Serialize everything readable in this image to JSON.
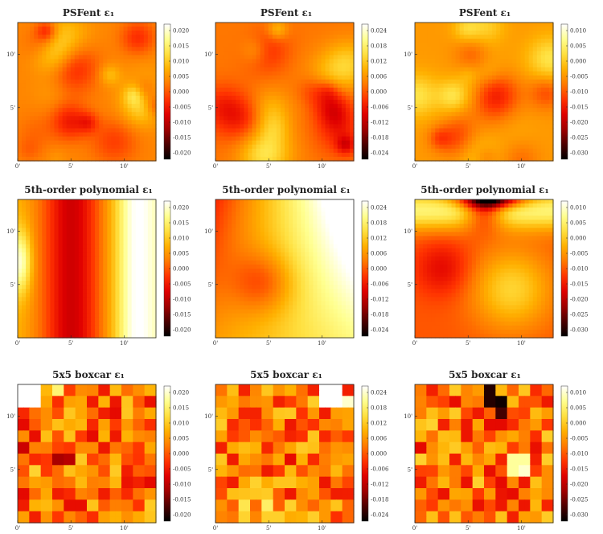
{
  "chart_data": [
    {
      "type": "heatmap",
      "title": "PSFent ε₁",
      "method": "psfent",
      "x_ticks": [
        "0'",
        "5'",
        "10'"
      ],
      "y_ticks": [
        "10'",
        "5'"
      ],
      "colorbar_ticks": [
        "0.020",
        "0.015",
        "0.010",
        "0.005",
        "0.000",
        "-0.005",
        "-0.010",
        "-0.015",
        "-0.020"
      ],
      "colormap": "hot"
    },
    {
      "type": "heatmap",
      "title": "PSFent ε₁",
      "method": "psfent",
      "x_ticks": [
        "0'",
        "5'",
        "10'"
      ],
      "y_ticks": [
        "10'",
        "5'"
      ],
      "colorbar_ticks": [
        "0.024",
        "0.018",
        "0.012",
        "0.006",
        "0.000",
        "-0.006",
        "-0.012",
        "-0.018",
        "-0.024"
      ],
      "colormap": "hot"
    },
    {
      "type": "heatmap",
      "title": "PSFent ε₁",
      "method": "psfent",
      "x_ticks": [
        "0'",
        "5'",
        "10'"
      ],
      "y_ticks": [
        "10'",
        "5'"
      ],
      "colorbar_ticks": [
        "0.010",
        "0.005",
        "0.000",
        "-0.005",
        "-0.010",
        "-0.015",
        "-0.020",
        "-0.025",
        "-0.030"
      ],
      "colormap": "hot"
    },
    {
      "type": "heatmap",
      "title": "5th-order polynomial ε₁",
      "method": "poly",
      "x_ticks": [
        "0'",
        "5'",
        "10'"
      ],
      "y_ticks": [
        "10'",
        "5'"
      ],
      "colorbar_ticks": [
        "0.020",
        "0.015",
        "0.010",
        "0.005",
        "0.000",
        "-0.005",
        "-0.010",
        "-0.015",
        "-0.020"
      ],
      "colormap": "hot"
    },
    {
      "type": "heatmap",
      "title": "5th-order polynomial ε₁",
      "method": "poly",
      "x_ticks": [
        "0'",
        "5'",
        "10'"
      ],
      "y_ticks": [
        "10'",
        "5'"
      ],
      "colorbar_ticks": [
        "0.024",
        "0.018",
        "0.012",
        "0.006",
        "0.000",
        "-0.006",
        "-0.012",
        "-0.018",
        "-0.024"
      ],
      "colormap": "hot"
    },
    {
      "type": "heatmap",
      "title": "5th-order polynomial ε₁",
      "method": "poly",
      "x_ticks": [
        "0'",
        "5'",
        "10'"
      ],
      "y_ticks": [
        "10'",
        "5'"
      ],
      "colorbar_ticks": [
        "0.010",
        "0.005",
        "0.000",
        "-0.005",
        "-0.010",
        "-0.015",
        "-0.020",
        "-0.025",
        "-0.030"
      ],
      "colormap": "hot"
    },
    {
      "type": "heatmap",
      "title": "5x5 boxcar ε₁",
      "method": "boxcar",
      "x_ticks": [
        "0'",
        "5'",
        "10'"
      ],
      "y_ticks": [
        "10'",
        "5'"
      ],
      "colorbar_ticks": [
        "0.020",
        "0.015",
        "0.010",
        "0.005",
        "0.000",
        "-0.005",
        "-0.010",
        "-0.015",
        "-0.020"
      ],
      "colormap": "hot"
    },
    {
      "type": "heatmap",
      "title": "5x5 boxcar ε₁",
      "method": "boxcar",
      "x_ticks": [
        "0'",
        "5'",
        "10'"
      ],
      "y_ticks": [
        "10'",
        "5'"
      ],
      "colorbar_ticks": [
        "0.024",
        "0.018",
        "0.012",
        "0.006",
        "0.000",
        "-0.006",
        "-0.012",
        "-0.018",
        "-0.024"
      ],
      "colormap": "hot"
    },
    {
      "type": "heatmap",
      "title": "5x5 boxcar ε₁",
      "method": "boxcar",
      "x_ticks": [
        "0'",
        "5'",
        "10'"
      ],
      "y_ticks": [
        "10'",
        "5'"
      ],
      "colorbar_ticks": [
        "0.010",
        "0.005",
        "0.000",
        "-0.005",
        "-0.010",
        "-0.015",
        "-0.020",
        "-0.025",
        "-0.030"
      ],
      "colormap": "hot"
    }
  ],
  "colors": {
    "hot_stops": [
      "#000000",
      "#4d0000",
      "#a00000",
      "#e00000",
      "#ff3300",
      "#ff7a00",
      "#ffb000",
      "#ffe040",
      "#ffff90",
      "#ffffff"
    ]
  }
}
